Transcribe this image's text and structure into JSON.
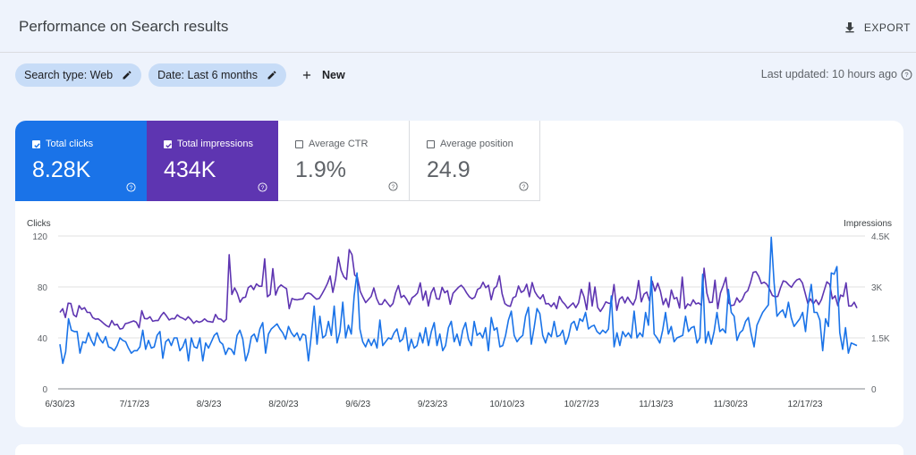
{
  "header": {
    "title": "Performance on Search results",
    "export_label": "EXPORT"
  },
  "filters": {
    "search_type": "Search type: Web",
    "date": "Date: Last 6 months",
    "new_label": "New"
  },
  "last_updated": "Last updated: 10 hours ago",
  "metrics": [
    {
      "label": "Total clicks",
      "value": "8.28K",
      "checked": true,
      "color": "#1a73e8"
    },
    {
      "label": "Total impressions",
      "value": "434K",
      "checked": true,
      "color": "#5e35b1"
    },
    {
      "label": "Average CTR",
      "value": "1.9%",
      "checked": false
    },
    {
      "label": "Average position",
      "value": "24.9",
      "checked": false
    }
  ],
  "chart_data": {
    "type": "line",
    "left_axis": {
      "title": "Clicks",
      "ticks": [
        "120",
        "80",
        "40",
        "0"
      ],
      "ylim": [
        0,
        120
      ]
    },
    "right_axis": {
      "title": "Impressions",
      "ticks": [
        "4.5K",
        "3K",
        "1.5K",
        "0"
      ],
      "ylim": [
        0,
        4500
      ]
    },
    "x_ticks": [
      "6/30/23",
      "7/17/23",
      "8/3/23",
      "8/20/23",
      "9/6/23",
      "9/23/23",
      "10/10/23",
      "10/27/23",
      "11/13/23",
      "11/30/23",
      "12/17/23"
    ],
    "series": [
      {
        "name": "Clicks",
        "axis": "left",
        "color": "#1a73e8",
        "values": [
          35,
          20,
          29,
          55,
          46,
          45,
          45,
          28,
          37,
          36,
          44,
          38,
          34,
          44,
          39,
          36,
          41,
          33,
          32,
          30,
          34,
          40,
          38,
          37,
          32,
          28,
          30,
          30,
          33,
          46,
          31,
          38,
          32,
          33,
          42,
          45,
          24,
          37,
          39,
          34,
          40,
          40,
          30,
          33,
          39,
          22,
          40,
          33,
          32,
          40,
          22,
          36,
          32,
          37,
          42,
          44,
          37,
          35,
          27,
          32,
          31,
          27,
          42,
          46,
          39,
          22,
          29,
          41,
          43,
          37,
          47,
          52,
          28,
          43,
          47,
          49,
          51,
          47,
          44,
          39,
          49,
          44,
          41,
          44,
          38,
          43,
          42,
          22,
          42,
          65,
          35,
          57,
          40,
          42,
          53,
          42,
          65,
          36,
          45,
          68,
          40,
          50,
          43,
          73,
          91,
          47,
          37,
          33,
          39,
          34,
          39,
          32,
          54,
          34,
          37,
          40,
          39,
          44,
          47,
          37,
          39,
          48,
          30,
          39,
          32,
          34,
          44,
          36,
          48,
          34,
          45,
          52,
          34,
          43,
          30,
          34,
          48,
          53,
          37,
          43,
          34,
          46,
          52,
          39,
          34,
          53,
          42,
          44,
          40,
          48,
          30,
          56,
          46,
          48,
          33,
          34,
          42,
          54,
          61,
          42,
          37,
          40,
          42,
          57,
          64,
          35,
          48,
          63,
          59,
          42,
          36,
          44,
          41,
          53,
          41,
          42,
          46,
          35,
          41,
          51,
          53,
          46,
          55,
          53,
          60,
          47,
          49,
          50,
          45,
          43,
          46,
          44,
          47,
          73,
          33,
          44,
          34,
          45,
          41,
          44,
          40,
          61,
          40,
          44,
          41,
          60,
          50,
          88,
          43,
          40,
          36,
          46,
          60,
          43,
          49,
          37,
          40,
          41,
          42,
          57,
          45,
          48,
          49,
          36,
          40,
          90,
          36,
          45,
          35,
          45,
          60,
          45,
          47,
          44,
          78,
          60,
          57,
          38,
          44,
          46,
          53,
          56,
          43,
          33,
          50,
          55,
          60,
          63,
          66,
          119,
          83,
          57,
          60,
          62,
          56,
          68,
          56,
          49,
          52,
          55,
          60,
          45,
          68,
          82,
          60,
          60,
          54,
          30,
          55,
          49,
          91,
          90,
          96,
          44,
          31,
          48,
          28,
          36,
          35,
          34
        ],
        "note": ""
      },
      {
        "name": "Impressions",
        "axis": "right",
        "color": "#5e35b1",
        "values": [
          2250,
          2360,
          2100,
          2520,
          2510,
          2180,
          2120,
          2450,
          2340,
          2390,
          2250,
          2250,
          2100,
          2050,
          2060,
          2000,
          1930,
          1860,
          1820,
          2010,
          1880,
          1900,
          1760,
          1780,
          1920,
          1940,
          1970,
          2000,
          1960,
          1800,
          2300,
          2070,
          2060,
          2120,
          1990,
          2010,
          2010,
          2150,
          2250,
          2150,
          2030,
          2070,
          2060,
          2180,
          2110,
          2080,
          2030,
          2120,
          2040,
          1930,
          2000,
          1960,
          1990,
          2060,
          1990,
          1980,
          1960,
          2190,
          2060,
          2050,
          1970,
          2050,
          3950,
          2780,
          2970,
          2810,
          2550,
          2680,
          2700,
          2980,
          3040,
          2920,
          3090,
          3020,
          3020,
          3830,
          2710,
          2780,
          3540,
          2760,
          2980,
          3060,
          3000,
          2950,
          2360,
          2660,
          2630,
          2620,
          2640,
          2650,
          2790,
          2820,
          2790,
          2710,
          2640,
          2660,
          2790,
          2940,
          3100,
          3320,
          2840,
          3240,
          3880,
          3490,
          3300,
          3220,
          4100,
          3950,
          3350,
          3280,
          2870,
          2700,
          2540,
          2630,
          2720,
          2970,
          2660,
          2490,
          2490,
          2630,
          2520,
          2420,
          2510,
          2830,
          3040,
          2690,
          2750,
          2640,
          2480,
          2680,
          2740,
          2820,
          3120,
          2610,
          2880,
          2440,
          2830,
          2980,
          2650,
          2640,
          2990,
          2830,
          2890,
          2490,
          2810,
          2900,
          2990,
          3050,
          2960,
          2820,
          2710,
          2650,
          2700,
          2930,
          2970,
          3140,
          2980,
          3050,
          2620,
          2950,
          3020,
          3330,
          2800,
          2510,
          2450,
          2430,
          2680,
          2720,
          3030,
          2840,
          2890,
          3080,
          2710,
          3130,
          2860,
          2730,
          2650,
          2770,
          2500,
          2510,
          2420,
          2530,
          2360,
          2720,
          2570,
          2490,
          2370,
          2450,
          2530,
          2390,
          2530,
          2930,
          2710,
          2330,
          3130,
          2440,
          3000,
          2400,
          2280,
          2400,
          2560,
          2520,
          2510,
          3070,
          2310,
          2640,
          2710,
          2530,
          2700,
          2570,
          2470,
          2660,
          3190,
          2560,
          2790,
          2850,
          2590,
          3170,
          2880,
          3110,
          2870,
          2480,
          2660,
          2400,
          2910,
          2650,
          2690,
          2380,
          3290,
          2360,
          2500,
          2450,
          2620,
          2500,
          2530,
          2460,
          3550,
          2820,
          2540,
          2550,
          3200,
          2360,
          2820,
          3040,
          3280,
          2530,
          2450,
          2470,
          2680,
          2550,
          2630,
          2820,
          2890,
          3130,
          3430,
          3450,
          3310,
          3100,
          3140,
          3080,
          2930,
          2750,
          2710,
          2720,
          2980,
          3180,
          3150,
          3060,
          2990,
          3120,
          3210,
          3240,
          3120,
          2830,
          2510,
          2650,
          2500,
          2620,
          2480,
          2630,
          2900,
          3150,
          3080,
          2650,
          2740,
          2450,
          2760,
          2720,
          3120,
          2440,
          2440,
          2550,
          2380
        ],
        "note": ""
      }
    ]
  }
}
